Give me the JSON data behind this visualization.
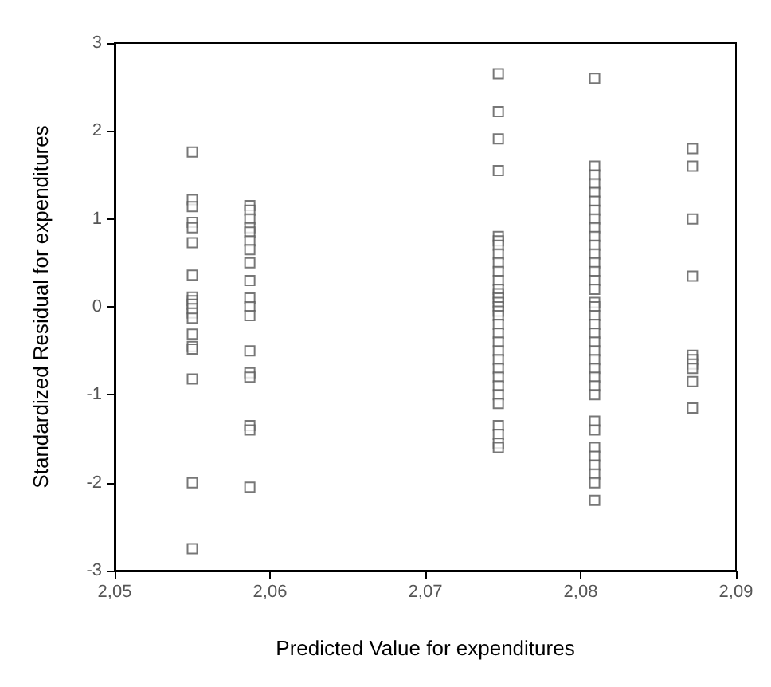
{
  "chart_data": {
    "type": "scatter",
    "xlabel": "Predicted Value for expenditures",
    "ylabel": "Standardized Residual for expenditures",
    "xlim": [
      2.05,
      2.09
    ],
    "xticks": [
      {
        "value": 2.05,
        "label": "2,05"
      },
      {
        "value": 2.06,
        "label": "2,06"
      },
      {
        "value": 2.07,
        "label": "2,07"
      },
      {
        "value": 2.08,
        "label": "2,08"
      },
      {
        "value": 2.09,
        "label": "2,09"
      }
    ],
    "ylim": [
      -3,
      3
    ],
    "yticks": [
      -3,
      -2,
      -1,
      0,
      1,
      2,
      3
    ],
    "grid": false,
    "marker": "square",
    "series": [
      {
        "color": "#555555",
        "x": [
          2.055,
          2.055,
          2.055,
          2.055,
          2.055,
          2.055,
          2.055,
          2.055,
          2.055,
          2.055,
          2.055,
          2.055,
          2.055,
          2.055,
          2.055,
          2.055,
          2.055,
          2.055,
          2.055,
          2.0587,
          2.0587,
          2.0587,
          2.0587,
          2.0587,
          2.0587,
          2.0587,
          2.0587,
          2.0587,
          2.0587,
          2.0587,
          2.0587,
          2.0587,
          2.0587,
          2.0587,
          2.0587,
          2.0587,
          2.0587,
          2.0747,
          2.0747,
          2.0747,
          2.0747,
          2.0747,
          2.0747,
          2.0747,
          2.0747,
          2.0747,
          2.0747,
          2.0747,
          2.0747,
          2.0747,
          2.0747,
          2.0747,
          2.0747,
          2.0747,
          2.0747,
          2.0747,
          2.0747,
          2.0747,
          2.0747,
          2.0747,
          2.0747,
          2.0747,
          2.0747,
          2.0747,
          2.0747,
          2.0747,
          2.0747,
          2.0747,
          2.0747,
          2.0809,
          2.0809,
          2.0809,
          2.0809,
          2.0809,
          2.0809,
          2.0809,
          2.0809,
          2.0809,
          2.0809,
          2.0809,
          2.0809,
          2.0809,
          2.0809,
          2.0809,
          2.0809,
          2.0809,
          2.0809,
          2.0809,
          2.0809,
          2.0809,
          2.0809,
          2.0809,
          2.0809,
          2.0809,
          2.0809,
          2.0809,
          2.0809,
          2.0809,
          2.0809,
          2.0809,
          2.0809,
          2.0809,
          2.0809,
          2.0809,
          2.0809,
          2.0872,
          2.0872,
          2.0872,
          2.0872,
          2.0872,
          2.0872,
          2.0872,
          2.0872,
          2.0872,
          2.0872
        ],
        "values": [
          1.76,
          1.22,
          1.14,
          0.96,
          0.9,
          0.73,
          0.36,
          0.11,
          0.07,
          0.03,
          -0.02,
          -0.07,
          -0.13,
          -0.31,
          -0.45,
          -0.48,
          -0.82,
          -2.0,
          -2.75,
          1.15,
          1.1,
          1.0,
          0.9,
          0.85,
          0.75,
          0.65,
          0.5,
          0.3,
          0.1,
          0,
          -0.1,
          -0.5,
          -0.75,
          -0.8,
          -1.35,
          -1.4,
          -2.05,
          2.65,
          2.22,
          1.91,
          1.55,
          0.8,
          0.75,
          0.7,
          0.6,
          0.5,
          0.4,
          0.3,
          0.2,
          0.15,
          0.1,
          0.05,
          0,
          -0.05,
          -0.1,
          -0.2,
          -0.3,
          -0.4,
          -0.5,
          -0.6,
          -0.7,
          -0.8,
          -0.9,
          -1.0,
          -1.1,
          -1.35,
          -1.45,
          -1.55,
          -1.6,
          2.6,
          1.6,
          1.5,
          1.4,
          1.3,
          1.2,
          1.1,
          1.0,
          0.9,
          0.8,
          0.7,
          0.6,
          0.5,
          0.4,
          0.3,
          0.2,
          0.05,
          0,
          -0.1,
          -0.2,
          -0.3,
          -0.4,
          -0.5,
          -0.6,
          -0.7,
          -0.8,
          -0.9,
          -1.0,
          -1.3,
          -1.4,
          -1.6,
          -1.7,
          -1.8,
          -1.9,
          -2.0,
          -2.2,
          1.8,
          1.6,
          1.0,
          0.35,
          -0.55,
          -0.6,
          -0.65,
          -0.7,
          -0.85,
          -1.15
        ]
      }
    ]
  }
}
